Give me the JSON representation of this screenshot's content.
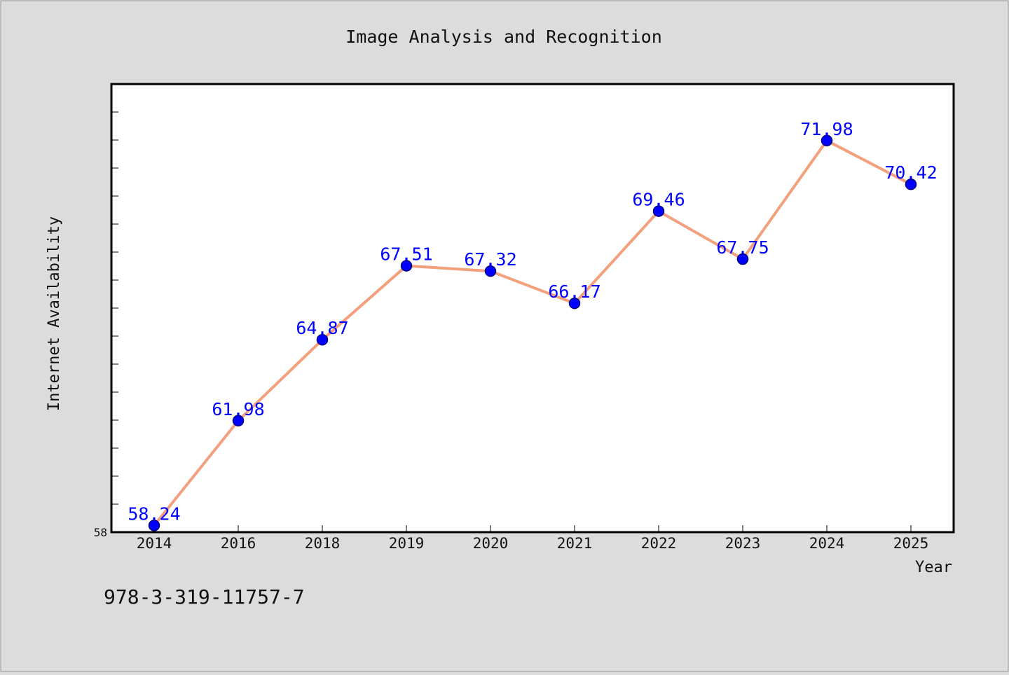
{
  "chart_data": {
    "type": "line",
    "title": "Image Analysis and Recognition",
    "xlabel": "Year",
    "ylabel": "Internet Availability",
    "categories": [
      "2014",
      "2016",
      "2018",
      "2019",
      "2020",
      "2021",
      "2022",
      "2023",
      "2024",
      "2025"
    ],
    "series": [
      {
        "values": [
          58.24,
          61.98,
          64.87,
          67.51,
          67.32,
          66.17,
          69.46,
          67.75,
          71.98,
          70.42
        ]
      }
    ],
    "y_tick_labels": [
      "58"
    ],
    "ylim": [
      58,
      74
    ],
    "grid": false,
    "legend": "none",
    "footer_text": "978-3-319-11757-7"
  },
  "colors": {
    "background": "#dcdcdc",
    "plot_background": "#ffffff",
    "line": "#f4a07c",
    "marker": "#0000ff",
    "data_label": "#0000ff"
  }
}
